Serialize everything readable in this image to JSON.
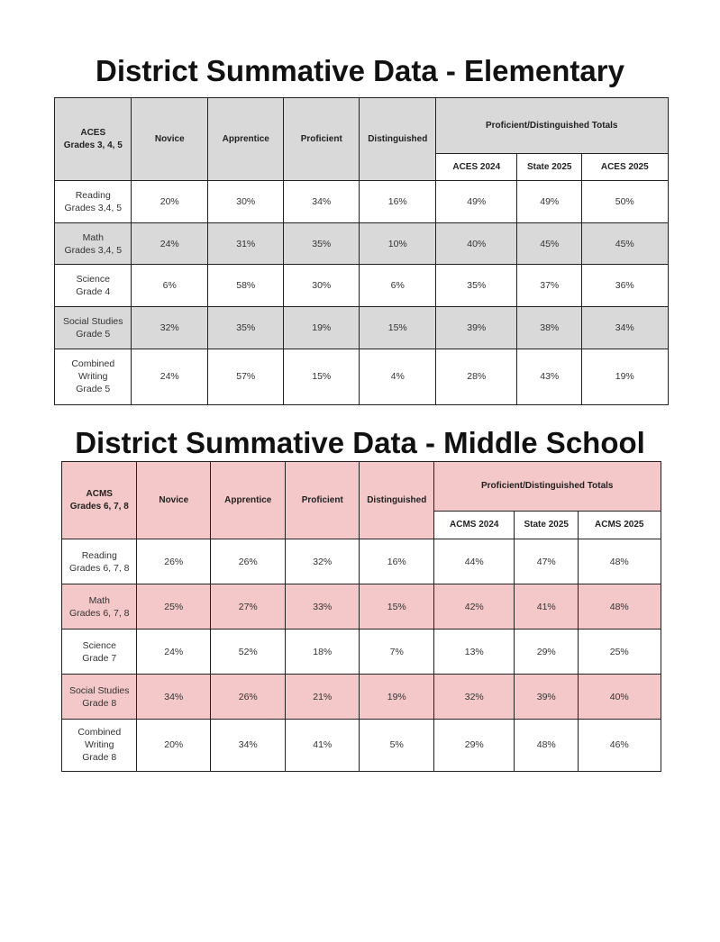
{
  "tables": [
    {
      "title": "District Summative Data - Elementary",
      "header": {
        "corner": [
          "ACES",
          "Grades 3, 4, 5"
        ],
        "levels": [
          "Novice",
          "Apprentice",
          "Proficient",
          "Distinguished"
        ],
        "totals": "Proficient/Distinguished Totals",
        "totals_columns": [
          "ACES 2024",
          "State 2025",
          "ACES 2025"
        ]
      },
      "rows": [
        {
          "label": [
            "Reading",
            "Grades 3,4, 5"
          ],
          "cells": [
            "20%",
            "30%",
            "34%",
            "16%",
            "49%",
            "49%",
            "50%"
          ]
        },
        {
          "label": [
            "Math",
            "Grades 3,4, 5"
          ],
          "cells": [
            "24%",
            "31%",
            "35%",
            "10%",
            "40%",
            "45%",
            "45%"
          ]
        },
        {
          "label": [
            "Science",
            "Grade 4"
          ],
          "cells": [
            "6%",
            "58%",
            "30%",
            "6%",
            "35%",
            "37%",
            "36%"
          ]
        },
        {
          "label": [
            "Social Studies",
            "Grade 5"
          ],
          "cells": [
            "32%",
            "35%",
            "19%",
            "15%",
            "39%",
            "38%",
            "34%"
          ]
        },
        {
          "label": [
            "Combined",
            "Writing",
            "Grade 5"
          ],
          "cells": [
            "24%",
            "57%",
            "15%",
            "4%",
            "28%",
            "43%",
            "19%"
          ]
        }
      ]
    },
    {
      "title": "District Summative Data - Middle School",
      "header": {
        "corner": [
          "ACMS",
          "Grades 6, 7, 8"
        ],
        "levels": [
          "Novice",
          "Apprentice",
          "Proficient",
          "Distinguished"
        ],
        "totals": "Proficient/Distinguished Totals",
        "totals_columns": [
          "ACMS 2024",
          "State 2025",
          "ACMS 2025"
        ]
      },
      "rows": [
        {
          "label": [
            "Reading",
            "Grades 6, 7, 8"
          ],
          "cells": [
            "26%",
            "26%",
            "32%",
            "16%",
            "44%",
            "47%",
            "48%"
          ]
        },
        {
          "label": [
            "Math",
            "Grades 6, 7, 8"
          ],
          "cells": [
            "25%",
            "27%",
            "33%",
            "15%",
            "42%",
            "41%",
            "48%"
          ]
        },
        {
          "label": [
            "Science",
            "Grade 7"
          ],
          "cells": [
            "24%",
            "52%",
            "18%",
            "7%",
            "13%",
            "29%",
            "25%"
          ]
        },
        {
          "label": [
            "Social Studies",
            "Grade 8"
          ],
          "cells": [
            "34%",
            "26%",
            "21%",
            "19%",
            "32%",
            "39%",
            "40%"
          ]
        },
        {
          "label": [
            "Combined",
            "Writing",
            "Grade 8"
          ],
          "cells": [
            "20%",
            "34%",
            "41%",
            "5%",
            "29%",
            "48%",
            "46%"
          ]
        }
      ]
    }
  ]
}
